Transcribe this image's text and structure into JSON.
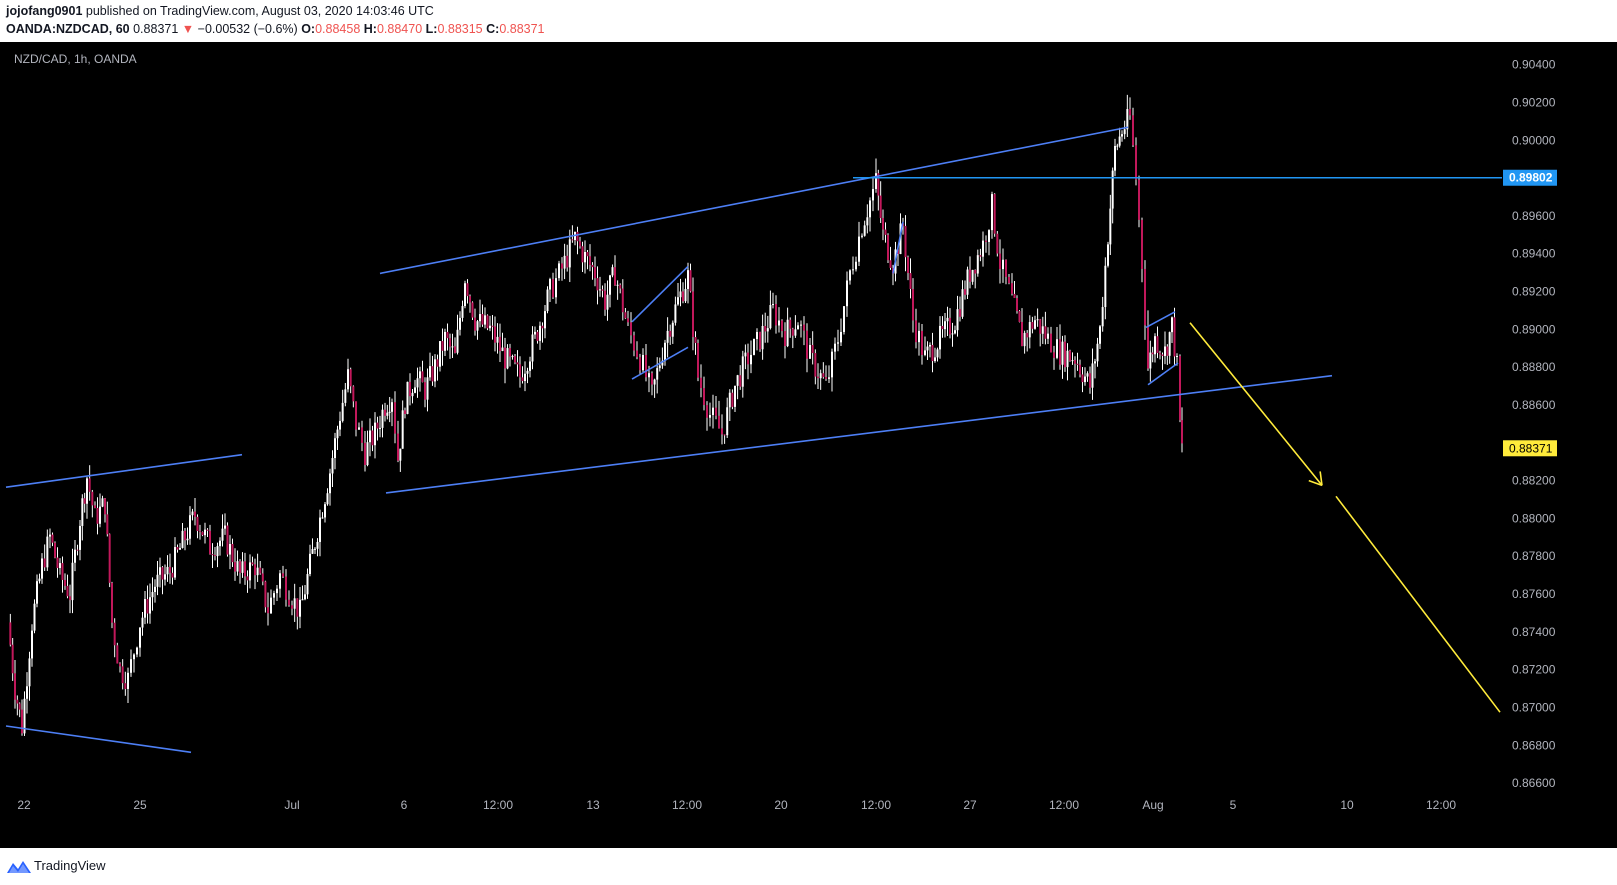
{
  "header": {
    "author": "jojofang0901",
    "published_text": "published on TradingView.com, August 03, 2020 14:03:46 UTC",
    "symbol": "OANDA:NZDCAD, 60",
    "last": "0.88371",
    "change_arrow": "▼",
    "change": "−0.00532 (−0.6%)",
    "o_label": "O:",
    "o_value": "0.88458",
    "h_label": "H:",
    "h_value": "0.88470",
    "l_label": "L:",
    "l_value": "0.88315",
    "c_label": "C:",
    "c_value": "0.88371"
  },
  "chart": {
    "legend": "NZD/CAD, 1h, OANDA"
  },
  "footer": {
    "brand": "TradingView",
    "logo_icon": "tradingview-logo-icon"
  },
  "chart_data": {
    "type": "candlestick",
    "symbol": "NZD/CAD",
    "interval": "1h",
    "ylim": [
      0.865,
      0.9052
    ],
    "y_ticks": [
      "0.90400",
      "0.90200",
      "0.90000",
      "0.89600",
      "0.89400",
      "0.89200",
      "0.89000",
      "0.88800",
      "0.88600",
      "0.88200",
      "0.88000",
      "0.87800",
      "0.87600",
      "0.87400",
      "0.87200",
      "0.87000",
      "0.86800",
      "0.86600"
    ],
    "x_ticks": [
      {
        "label": "22",
        "x": 0.024
      },
      {
        "label": "25",
        "x": 0.14
      },
      {
        "label": "Jul",
        "x": 0.292
      },
      {
        "label": "6",
        "x": 0.404
      },
      {
        "label": "12:00",
        "x": 0.498
      },
      {
        "label": "13",
        "x": 0.593
      },
      {
        "label": "12:00",
        "x": 0.687
      },
      {
        "label": "20",
        "x": 0.781
      },
      {
        "label": "12:00",
        "x": 0.876
      },
      {
        "label": "27",
        "x": 0.97
      },
      {
        "label": "12:00",
        "x": 1.064
      },
      {
        "label": "Aug",
        "x": 1.153
      },
      {
        "label": "5",
        "x": 1.233
      },
      {
        "label": "10",
        "x": 1.347
      },
      {
        "label": "12:00",
        "x": 1.441
      }
    ],
    "price_path": [
      [
        0.008,
        0.8745
      ],
      [
        0.015,
        0.871
      ],
      [
        0.022,
        0.869
      ],
      [
        0.032,
        0.8745
      ],
      [
        0.042,
        0.8775
      ],
      [
        0.05,
        0.879
      ],
      [
        0.06,
        0.877
      ],
      [
        0.07,
        0.876
      ],
      [
        0.08,
        0.88
      ],
      [
        0.087,
        0.8822
      ],
      [
        0.095,
        0.88
      ],
      [
        0.105,
        0.8808
      ],
      [
        0.112,
        0.8745
      ],
      [
        0.12,
        0.872
      ],
      [
        0.128,
        0.8715
      ],
      [
        0.14,
        0.8745
      ],
      [
        0.155,
        0.8765
      ],
      [
        0.17,
        0.8772
      ],
      [
        0.185,
        0.879
      ],
      [
        0.195,
        0.8802
      ],
      [
        0.21,
        0.8785
      ],
      [
        0.225,
        0.879
      ],
      [
        0.24,
        0.877
      ],
      [
        0.255,
        0.8775
      ],
      [
        0.268,
        0.8752
      ],
      [
        0.28,
        0.877
      ],
      [
        0.292,
        0.8758
      ],
      [
        0.3,
        0.875
      ],
      [
        0.31,
        0.8775
      ],
      [
        0.32,
        0.88
      ],
      [
        0.33,
        0.8825
      ],
      [
        0.34,
        0.8855
      ],
      [
        0.348,
        0.8875
      ],
      [
        0.356,
        0.885
      ],
      [
        0.365,
        0.8835
      ],
      [
        0.375,
        0.8845
      ],
      [
        0.385,
        0.886
      ],
      [
        0.392,
        0.8865
      ],
      [
        0.398,
        0.8832
      ],
      [
        0.405,
        0.8862
      ],
      [
        0.415,
        0.8875
      ],
      [
        0.425,
        0.8868
      ],
      [
        0.435,
        0.888
      ],
      [
        0.445,
        0.8895
      ],
      [
        0.455,
        0.8885
      ],
      [
        0.465,
        0.8928
      ],
      [
        0.475,
        0.8905
      ],
      [
        0.49,
        0.89
      ],
      [
        0.505,
        0.8885
      ],
      [
        0.52,
        0.8875
      ],
      [
        0.535,
        0.8895
      ],
      [
        0.55,
        0.892
      ],
      [
        0.562,
        0.8932
      ],
      [
        0.575,
        0.8948
      ],
      [
        0.585,
        0.8938
      ],
      [
        0.595,
        0.893
      ],
      [
        0.605,
        0.8915
      ],
      [
        0.615,
        0.893
      ],
      [
        0.628,
        0.89
      ],
      [
        0.64,
        0.8885
      ],
      [
        0.652,
        0.8865
      ],
      [
        0.665,
        0.8895
      ],
      [
        0.678,
        0.8915
      ],
      [
        0.688,
        0.8928
      ],
      [
        0.698,
        0.8875
      ],
      [
        0.71,
        0.8855
      ],
      [
        0.722,
        0.8845
      ],
      [
        0.735,
        0.887
      ],
      [
        0.748,
        0.8885
      ],
      [
        0.76,
        0.8895
      ],
      [
        0.773,
        0.891
      ],
      [
        0.785,
        0.8898
      ],
      [
        0.798,
        0.8905
      ],
      [
        0.81,
        0.8885
      ],
      [
        0.826,
        0.887
      ],
      [
        0.838,
        0.8895
      ],
      [
        0.85,
        0.893
      ],
      [
        0.862,
        0.8955
      ],
      [
        0.87,
        0.8968
      ],
      [
        0.876,
        0.8978
      ],
      [
        0.883,
        0.895
      ],
      [
        0.893,
        0.8935
      ],
      [
        0.903,
        0.8955
      ],
      [
        0.913,
        0.8905
      ],
      [
        0.925,
        0.8885
      ],
      [
        0.94,
        0.8895
      ],
      [
        0.955,
        0.8905
      ],
      [
        0.97,
        0.893
      ],
      [
        0.983,
        0.8945
      ],
      [
        0.992,
        0.8965
      ],
      [
        1.0,
        0.8935
      ],
      [
        1.012,
        0.8915
      ],
      [
        1.022,
        0.8895
      ],
      [
        1.035,
        0.8905
      ],
      [
        1.048,
        0.8895
      ],
      [
        1.06,
        0.8888
      ],
      [
        1.075,
        0.8885
      ],
      [
        1.09,
        0.887
      ],
      [
        1.1,
        0.89
      ],
      [
        1.108,
        0.895
      ],
      [
        1.115,
        0.8995
      ],
      [
        1.122,
        0.9005
      ],
      [
        1.13,
        0.9012
      ],
      [
        1.136,
        0.898
      ],
      [
        1.142,
        0.8935
      ],
      [
        1.148,
        0.888
      ],
      [
        1.155,
        0.8895
      ],
      [
        1.165,
        0.8888
      ],
      [
        1.172,
        0.8902
      ],
      [
        1.177,
        0.888
      ],
      [
        1.18,
        0.885
      ],
      [
        1.182,
        0.8837
      ]
    ],
    "trendlines_blue": [
      {
        "x1": 0.006,
        "y1": 0.88165,
        "x2": 0.242,
        "y2": 0.88337
      },
      {
        "x1": 0.006,
        "y1": 0.86902,
        "x2": 0.191,
        "y2": 0.86763
      },
      {
        "x1": 0.38,
        "y1": 0.89296,
        "x2": 1.128,
        "y2": 0.90069
      },
      {
        "x1": 0.386,
        "y1": 0.88135,
        "x2": 1.332,
        "y2": 0.88755
      },
      {
        "x1": 0.632,
        "y1": 0.8904,
        "x2": 0.688,
        "y2": 0.89333
      },
      {
        "x1": 0.632,
        "y1": 0.88737,
        "x2": 0.688,
        "y2": 0.88905
      },
      {
        "x1": 0.893,
        "y1": 0.89296,
        "x2": 0.903,
        "y2": 0.89569
      },
      {
        "x1": 1.146,
        "y1": 0.8901,
        "x2": 1.175,
        "y2": 0.89093
      },
      {
        "x1": 1.148,
        "y1": 0.88707,
        "x2": 1.178,
        "y2": 0.88822
      }
    ],
    "horizontal_level": {
      "value": 0.89802,
      "label": "0.89802",
      "x_start": 0.853
    },
    "projection_yellow": [
      {
        "x1": 1.19,
        "y1": 0.89035,
        "x2": 1.322,
        "y2": 0.88175,
        "arrow": true
      },
      {
        "x1": 1.336,
        "y1": 0.88117,
        "x2": 1.5,
        "y2": 0.86975
      }
    ],
    "last_price": {
      "value": 0.88371,
      "label": "0.88371"
    },
    "colors": {
      "background": "#000000",
      "candles": "#c2185b",
      "wicks": "#ffffff",
      "trendlines": "#4d7ff5",
      "level": "#2196f3",
      "projection": "#ffeb3b",
      "axis_text": "#b2b5be"
    }
  }
}
